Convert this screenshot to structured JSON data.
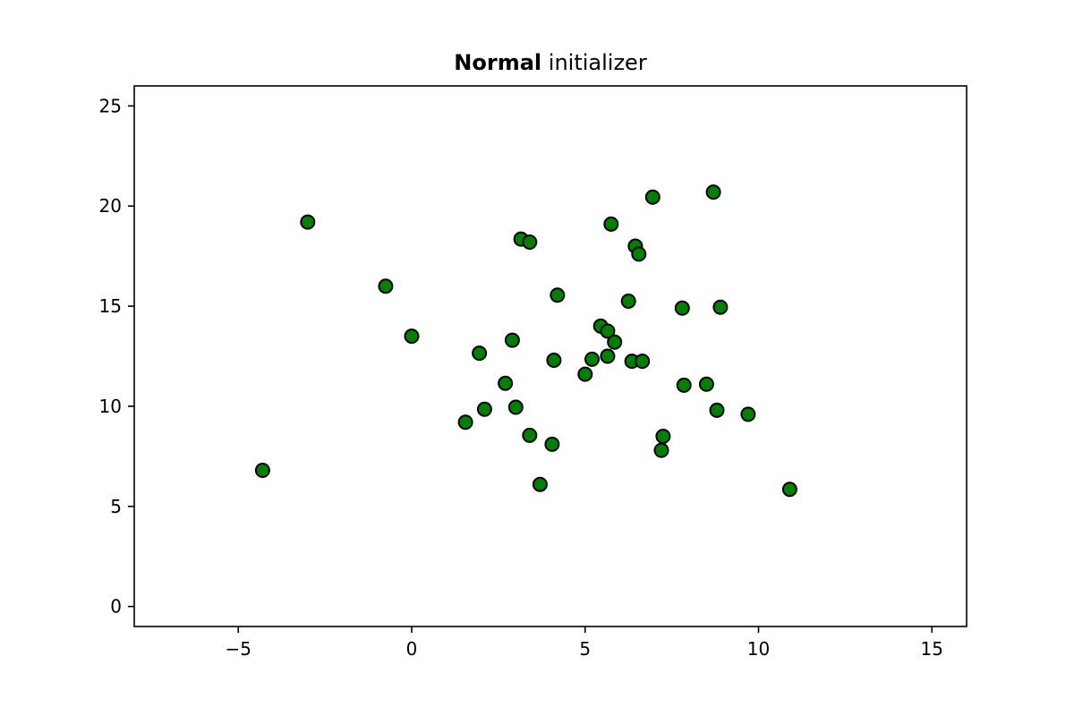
{
  "chart_data": {
    "type": "scatter",
    "title": "initializer",
    "title_bold": "Normal",
    "xlabel": "",
    "ylabel": "",
    "xlim": [
      -8,
      16
    ],
    "ylim": [
      -1,
      26
    ],
    "xticks": [
      -5,
      0,
      5,
      10,
      15
    ],
    "yticks": [
      0,
      5,
      10,
      15,
      20,
      25
    ],
    "xtick_labels": [
      "−5",
      "0",
      "5",
      "10",
      "15"
    ],
    "ytick_labels": [
      "0",
      "5",
      "10",
      "15",
      "20",
      "25"
    ],
    "grid": false,
    "marker_color": "#008000",
    "marker_edge_color": "#000000",
    "points": [
      {
        "x": -4.3,
        "y": 6.8
      },
      {
        "x": -3.0,
        "y": 19.2
      },
      {
        "x": -0.75,
        "y": 16.0
      },
      {
        "x": 0.0,
        "y": 13.5
      },
      {
        "x": 1.55,
        "y": 9.2
      },
      {
        "x": 1.95,
        "y": 12.65
      },
      {
        "x": 2.1,
        "y": 9.85
      },
      {
        "x": 2.7,
        "y": 11.15
      },
      {
        "x": 2.9,
        "y": 13.3
      },
      {
        "x": 3.0,
        "y": 9.95
      },
      {
        "x": 3.15,
        "y": 18.35
      },
      {
        "x": 3.4,
        "y": 18.2
      },
      {
        "x": 3.4,
        "y": 8.55
      },
      {
        "x": 3.7,
        "y": 6.1
      },
      {
        "x": 4.05,
        "y": 8.1
      },
      {
        "x": 4.1,
        "y": 12.3
      },
      {
        "x": 4.2,
        "y": 15.55
      },
      {
        "x": 5.0,
        "y": 11.6
      },
      {
        "x": 5.2,
        "y": 12.35
      },
      {
        "x": 5.45,
        "y": 14.0
      },
      {
        "x": 5.65,
        "y": 13.75
      },
      {
        "x": 5.65,
        "y": 12.5
      },
      {
        "x": 5.75,
        "y": 19.1
      },
      {
        "x": 5.85,
        "y": 13.2
      },
      {
        "x": 6.25,
        "y": 15.25
      },
      {
        "x": 6.35,
        "y": 12.25
      },
      {
        "x": 6.45,
        "y": 18.0
      },
      {
        "x": 6.55,
        "y": 17.6
      },
      {
        "x": 6.65,
        "y": 12.25
      },
      {
        "x": 6.95,
        "y": 20.45
      },
      {
        "x": 7.2,
        "y": 7.8
      },
      {
        "x": 7.25,
        "y": 8.5
      },
      {
        "x": 7.8,
        "y": 14.9
      },
      {
        "x": 7.85,
        "y": 11.05
      },
      {
        "x": 8.5,
        "y": 11.1
      },
      {
        "x": 8.7,
        "y": 20.7
      },
      {
        "x": 8.8,
        "y": 9.8
      },
      {
        "x": 8.9,
        "y": 14.95
      },
      {
        "x": 9.7,
        "y": 9.6
      },
      {
        "x": 10.9,
        "y": 5.85
      }
    ]
  }
}
